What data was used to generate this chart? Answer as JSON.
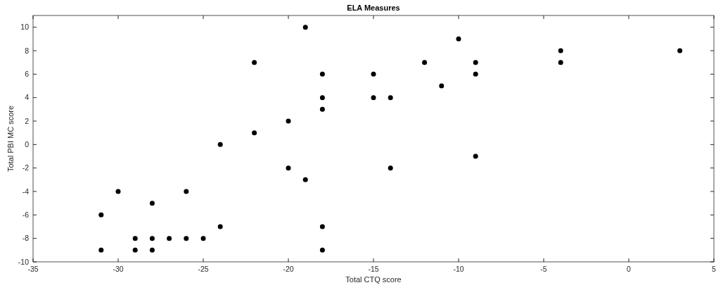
{
  "chart_data": {
    "type": "scatter",
    "title": "ELA Measures",
    "xlabel": "Total CTQ score",
    "ylabel": "Total PBI MC score",
    "x": [
      -31,
      -31,
      -30,
      -29,
      -29,
      -28,
      -28,
      -28,
      -27,
      -26,
      -26,
      -25,
      -24,
      -24,
      -22,
      -22,
      -20,
      -20,
      -19,
      -19,
      -18,
      -18,
      -18,
      -18,
      -18,
      -15,
      -15,
      -14,
      -14,
      -12,
      -11,
      -10,
      -9,
      -9,
      -9,
      -4,
      -4,
      3
    ],
    "values": [
      -6,
      -9,
      -4,
      -8,
      -9,
      -5,
      -8,
      -9,
      -8,
      -4,
      -8,
      -8,
      0,
      -7,
      7,
      1,
      2,
      -2,
      10,
      -3,
      6,
      4,
      3,
      -7,
      -9,
      6,
      4,
      4,
      -2,
      7,
      5,
      9,
      7,
      6,
      -1,
      8,
      7,
      8
    ],
    "color": "#000000",
    "marker": "circle",
    "grid": false,
    "xlim": [
      -35,
      5
    ],
    "xticks": [
      -35,
      -30,
      -25,
      -20,
      -15,
      -10,
      -5,
      0,
      5
    ],
    "ylim": [
      -10,
      11
    ],
    "yticks": [
      -10,
      -8,
      -6,
      -4,
      -2,
      0,
      2,
      4,
      6,
      8,
      10
    ]
  }
}
